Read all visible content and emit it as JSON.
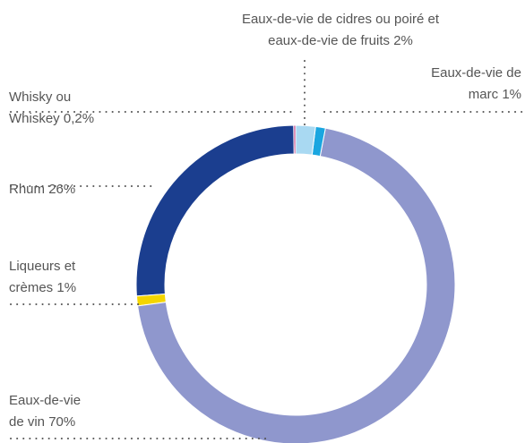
{
  "chart_data": {
    "type": "donut",
    "categories": [
      "Eaux-de-vie de cidres ou poiré et eaux-de-vie de fruits",
      "Eaux-de-vie de marc",
      "Eaux-de-vie de vin",
      "Liqueurs et crèmes",
      "Rhum",
      "Whisky ou Whiskey"
    ],
    "values": [
      2,
      1,
      70,
      1,
      26,
      0.2
    ],
    "value_labels": [
      "2%",
      "1%",
      "70%",
      "1%",
      "26%",
      "0,2%"
    ],
    "colors": [
      "#a9d9f2",
      "#1aa6e0",
      "#8f97cd",
      "#f4d500",
      "#1b3e8f",
      "#c2307c"
    ]
  }
}
